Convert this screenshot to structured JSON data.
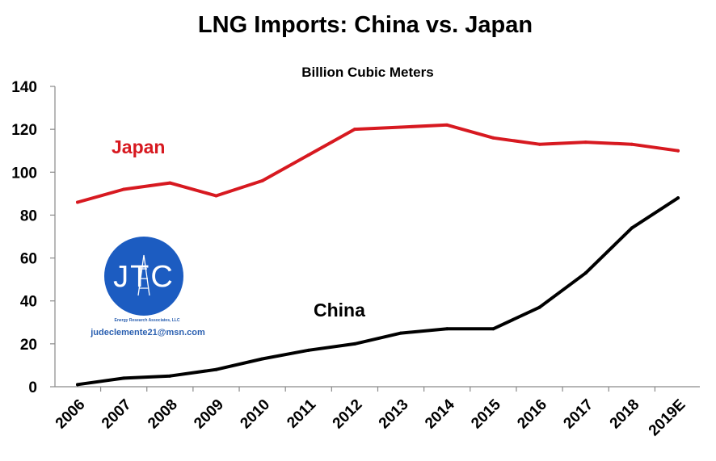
{
  "colors": {
    "japan": "#d71920",
    "china": "#000000",
    "logo_blue": "#1c5cc1"
  },
  "logo": {
    "letters": "JTC",
    "tagline": "Energy Research Associates, LLC",
    "email": "judeclemente21@msn.com"
  },
  "chart_data": {
    "type": "line",
    "title": "LNG Imports: China vs. Japan",
    "subtitle": "Billion Cubic Meters",
    "xlabel": "",
    "ylabel": "",
    "categories": [
      "2006",
      "2007",
      "2008",
      "2009",
      "2010",
      "2011",
      "2012",
      "2013",
      "2014",
      "2015",
      "2016",
      "2017",
      "2018",
      "2019E"
    ],
    "ylim": [
      0,
      140
    ],
    "yticks": [
      0,
      20,
      40,
      60,
      80,
      100,
      120,
      140
    ],
    "grid": false,
    "series": [
      {
        "name": "Japan",
        "values": [
          86,
          92,
          95,
          89,
          96,
          108,
          120,
          121,
          122,
          116,
          113,
          114,
          113,
          110
        ]
      },
      {
        "name": "China",
        "values": [
          1,
          4,
          5,
          8,
          13,
          17,
          20,
          25,
          27,
          27,
          37,
          53,
          74,
          88
        ]
      }
    ]
  }
}
